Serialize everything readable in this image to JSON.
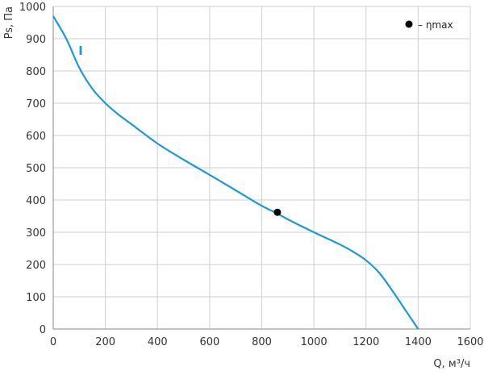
{
  "chart_data": {
    "type": "line",
    "title": "",
    "xlabel": "Q, м³/ч",
    "ylabel": "Ps, Па",
    "xlim": [
      0,
      1600
    ],
    "ylim": [
      0,
      1000
    ],
    "xticks": [
      0,
      200,
      400,
      600,
      800,
      1000,
      1200,
      1400,
      1600
    ],
    "yticks": [
      0,
      100,
      200,
      300,
      400,
      500,
      600,
      700,
      800,
      900,
      1000
    ],
    "grid": true,
    "legend_position": "top-right",
    "legend_label": "– ηmax",
    "colors": {
      "series": "#1a9ad6",
      "grid": "#d0d0d0",
      "axis": "#888888",
      "marker": "#000000"
    },
    "series": [
      {
        "name": "I",
        "x": [
          0,
          50,
          100,
          150,
          200,
          250,
          300,
          400,
          500,
          600,
          700,
          800,
          860,
          900,
          1000,
          1100,
          1150,
          1200,
          1250,
          1300,
          1350,
          1400
        ],
        "y": [
          970,
          900,
          810,
          745,
          700,
          665,
          635,
          575,
          525,
          478,
          430,
          382,
          358,
          340,
          300,
          262,
          240,
          213,
          175,
          120,
          60,
          0
        ]
      }
    ],
    "markers": [
      {
        "label": "ηmax",
        "x": 860,
        "y": 362
      }
    ]
  }
}
